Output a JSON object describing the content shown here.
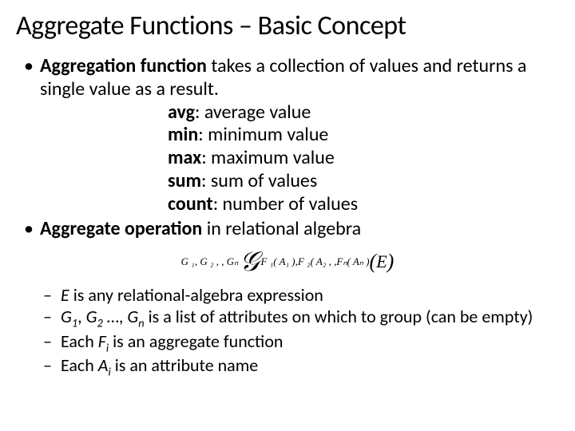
{
  "title": "Aggregate Functions – Basic Concept",
  "bullet1_prefix_bold": "Aggregation function",
  "bullet1_rest": " takes a collection of values and returns a single value as a result.",
  "funcs": {
    "avg_k": "avg",
    "avg_v": ":  average value",
    "min_k": "min",
    "min_v": ":  minimum value",
    "max_k": "max",
    "max_v": ":  maximum value",
    "sum_k": "sum",
    "sum_v": ":  sum of values",
    "count_k": "count",
    "count_v": ":  number of values"
  },
  "bullet2_prefix_bold": "Aggregate operation",
  "bullet2_rest": " in relational algebra",
  "formula": {
    "left_sub": "G ₁, G ₂ ,  , Gₙ ",
    "script_g": "𝒢",
    "right_sub": "F ₁( A₁ ),F ₂( A₂  ,  ,Fₙ( Aₙ )",
    "lparen": "(",
    "E": "E",
    "rparen": ")",
    "font_family": "Times New Roman",
    "title_font": "Calibri",
    "text_color": "#000000",
    "background": "#ffffff"
  },
  "sub1_a": "E",
  "sub1_b": " is any relational-algebra expression",
  "sub2_a": "G",
  "sub2_s1": "1",
  "sub2_b": ", ",
  "sub2_c": "G",
  "sub2_s2": "2",
  "sub2_d": " …, ",
  "sub2_e": "G",
  "sub2_sn": "n",
  "sub2_f": " is a list of attributes on which to group (can be empty)",
  "sub3_a": "Each ",
  "sub3_b": "F",
  "sub3_si": "i",
  "sub3_c": " is an aggregate function",
  "sub4_a": "Each ",
  "sub4_b": "A",
  "sub4_si": "i",
  "sub4_c": " is an attribute name"
}
